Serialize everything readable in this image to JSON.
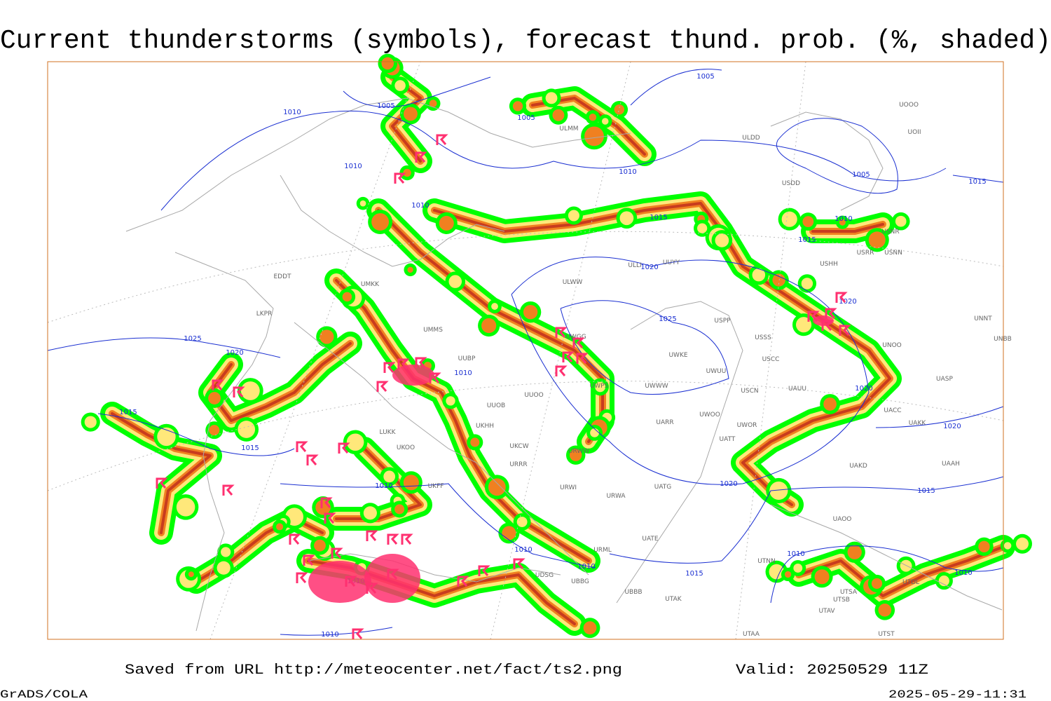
{
  "title": "Current thunderstorms (symbols), forecast thund. prob. (%, shaded)",
  "footer": {
    "saved_from": "Saved from URL http://meteocenter.net/fact/ts2.png",
    "valid": "Valid: 20250529 11Z",
    "software": "GrADS/COLA",
    "timestamp": "2025-05-29-11:31"
  },
  "isobar_labels": [
    1005,
    1005,
    1005,
    1005,
    1010,
    1010,
    1010,
    1010,
    1010,
    1010,
    1010,
    1010,
    1010,
    1010,
    1010,
    1010,
    1010,
    1015,
    1015,
    1015,
    1015,
    1015,
    1015,
    1015,
    1020,
    1020,
    1020,
    1020,
    1020,
    1020,
    1025,
    1025
  ],
  "stations": [
    "UOOO",
    "UOII",
    "ULDD",
    "ULMM",
    "USDD",
    "USNR",
    "USNN",
    "USRR",
    "USHH",
    "ULWW",
    "ULLI",
    "UUYY",
    "EDDT",
    "LKPR",
    "UMKK",
    "UMMS",
    "UWGG",
    "UWKE",
    "UWUU",
    "UWWW",
    "USPP",
    "USSS",
    "USCC",
    "USCN",
    "UAUU",
    "UNOO",
    "UNNT",
    "UNBB",
    "UASP",
    "UACC",
    "UAKK",
    "UAKD",
    "UAAH",
    "UAOO",
    "UTNN",
    "UTAK",
    "UTAA",
    "UTST",
    "UTSA",
    "UTSB",
    "UTAV",
    "UTDL",
    "UBBB",
    "URML",
    "UATE",
    "UATT",
    "UWOO",
    "UWOR",
    "UARR",
    "URWA",
    "URWI",
    "UATG",
    "URRR",
    "UKCW",
    "UKHH",
    "UUOB",
    "UUBP",
    "UUOO",
    "LUKK",
    "UKOO",
    "UKFF",
    "UDSG",
    "UBBG",
    "URWW",
    "UWPS"
  ]
}
